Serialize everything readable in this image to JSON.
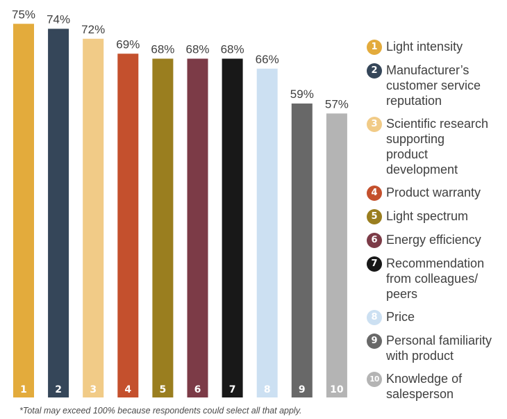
{
  "chart_data": {
    "type": "bar",
    "categories": [
      "1",
      "2",
      "3",
      "4",
      "5",
      "6",
      "7",
      "8",
      "9",
      "10"
    ],
    "values": [
      75,
      74,
      72,
      69,
      68,
      68,
      68,
      66,
      59,
      57
    ],
    "value_labels": [
      "75%",
      "74%",
      "72%",
      "69%",
      "68%",
      "68%",
      "68%",
      "66%",
      "59%",
      "57%"
    ],
    "colors": [
      "#E3AB3C",
      "#354659",
      "#F1CB87",
      "#C4502D",
      "#9A7E1F",
      "#7C3B47",
      "#181818",
      "#CCE0F2",
      "#686868",
      "#B4B4B4"
    ],
    "ylim": [
      0,
      100
    ],
    "grid": false,
    "legend_position": "right",
    "legend": [
      "Light intensity",
      "Manufacturer's customer service reputation",
      "Scientific research supporting product development",
      "Product warranty",
      "Light spectrum",
      "Energy efficiency",
      "Recommendation from colleagues/ peers",
      "Price",
      "Personal familiarity with product",
      "Knowledge of salesperson"
    ],
    "legend_lines": [
      [
        "Light intensity"
      ],
      [
        "Manufacturer’s",
        "customer service",
        "reputation"
      ],
      [
        "Scientific research",
        "supporting",
        "product",
        "development"
      ],
      [
        "Product warranty"
      ],
      [
        "Light spectrum"
      ],
      [
        "Energy efficiency"
      ],
      [
        "Recommendation",
        "from colleagues/",
        "peers"
      ],
      [
        "Price"
      ],
      [
        "Personal familiarity",
        "with product"
      ],
      [
        "Knowledge of",
        "salesperson"
      ]
    ],
    "footnote": "*Total may exceed 100% because respondents could select all that apply."
  }
}
